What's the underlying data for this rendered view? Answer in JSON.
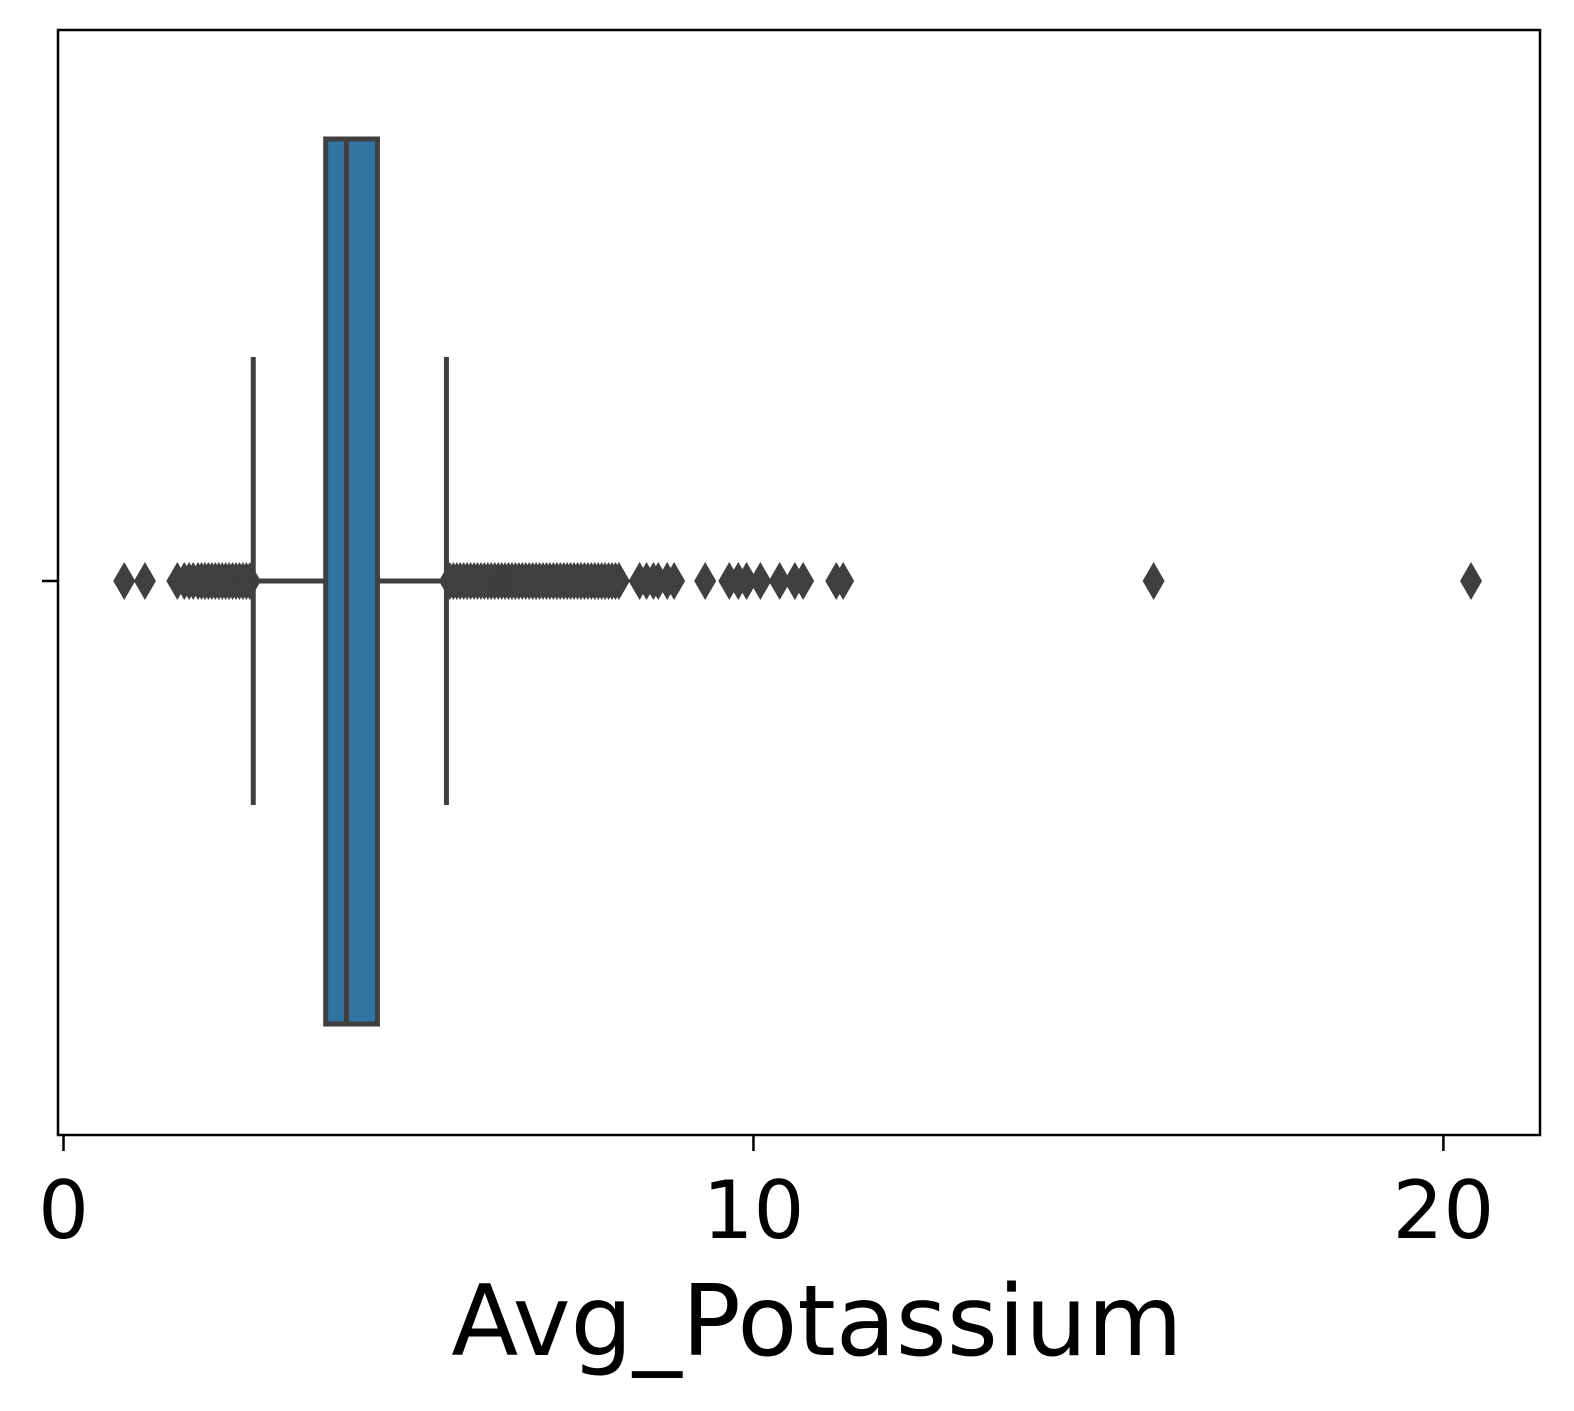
{
  "chart_data": {
    "type": "boxplot",
    "orientation": "horizontal",
    "xlabel": "Avg_Potassium",
    "ylabel": "",
    "title": "",
    "xlim": [
      -0.08,
      21.4
    ],
    "xticks": [
      0,
      10,
      20
    ],
    "xtick_labels": [
      "0",
      "10",
      "20"
    ],
    "grid": false,
    "legend": "none",
    "box": {
      "whisker_low": 2.75,
      "q1": 3.8,
      "median": 4.1,
      "q3": 4.55,
      "whisker_high": 5.55,
      "color": "#3274a1",
      "line_color": "#3f3f3f"
    },
    "outliers": [
      0.88,
      1.18,
      1.65,
      1.75,
      1.82,
      1.88,
      1.95,
      2.0,
      2.05,
      2.1,
      2.15,
      2.2,
      2.25,
      2.3,
      2.35,
      2.4,
      2.45,
      2.5,
      2.55,
      2.6,
      2.65,
      2.7,
      5.6,
      5.65,
      5.7,
      5.75,
      5.8,
      5.85,
      5.9,
      5.95,
      6.0,
      6.05,
      6.1,
      6.15,
      6.2,
      6.25,
      6.3,
      6.35,
      6.4,
      6.45,
      6.5,
      6.55,
      6.6,
      6.65,
      6.7,
      6.75,
      6.8,
      6.85,
      6.9,
      6.95,
      7.0,
      7.05,
      7.1,
      7.15,
      7.2,
      7.25,
      7.3,
      7.35,
      7.4,
      7.45,
      7.5,
      7.55,
      7.6,
      7.65,
      7.7,
      7.75,
      7.8,
      7.85,
      7.9,
      7.95,
      8.0,
      8.05,
      8.35,
      8.45,
      8.55,
      8.62,
      8.75,
      8.85,
      9.3,
      9.65,
      9.78,
      9.9,
      10.1,
      10.38,
      10.6,
      10.72,
      11.2,
      11.3,
      15.8,
      20.4
    ]
  }
}
